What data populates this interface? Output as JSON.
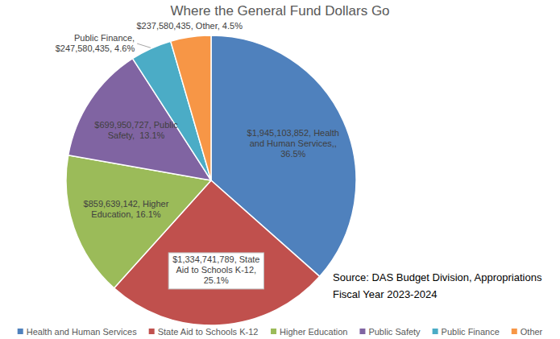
{
  "chart_data": {
    "type": "pie",
    "title": "Where the General Fund Dollars Go",
    "categories": [
      "Health and Human Services",
      "State Aid to Schools K-12",
      "Higher Education",
      "Public Safety",
      "Public Finance",
      "Other"
    ],
    "values": [
      36.5,
      25.1,
      16.1,
      13.1,
      4.6,
      4.5
    ],
    "value_labels": [
      "$1,945,103,852, Health and Human Services,, 36.5%",
      "$1,334,741,789, State Aid to Schools K-12,  25.1%",
      "$859,639,142, Higher Education, 16.1%",
      "$699,950,727, Public Safety,  13.1%",
      "Public Finance, $247,580,435, 4.6%",
      "$237,580,435, Other, 4.5%"
    ],
    "colors": [
      "#4f81bd",
      "#c0504d",
      "#9bbb59",
      "#8064a2",
      "#4bacc6",
      "#f79646"
    ],
    "data_labels": true,
    "legend": "bottom",
    "annotations": [
      "Source: DAS Budget Division, Appropriations",
      "Fiscal Year 2023-2024"
    ]
  }
}
